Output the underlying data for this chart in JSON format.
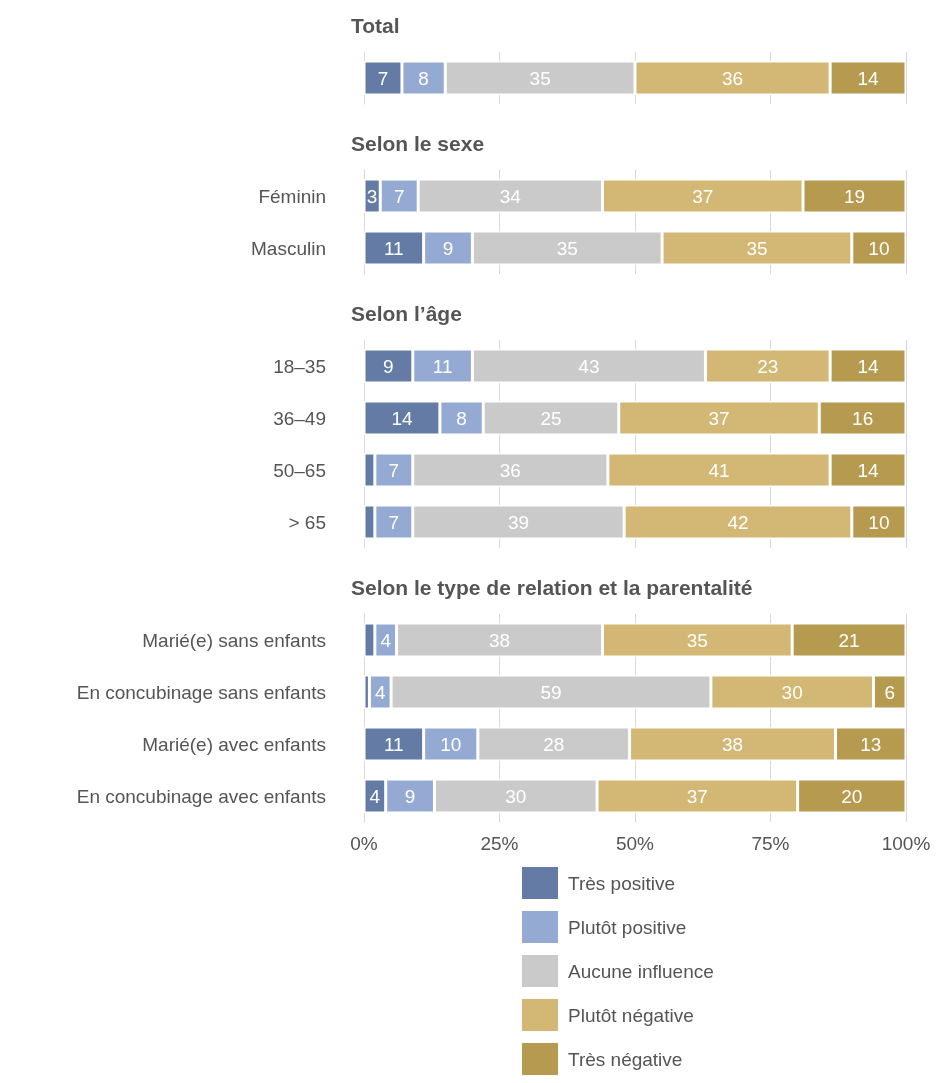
{
  "chart_data": [
    {
      "type": "bar",
      "title": "Total",
      "orientation": "horizontal",
      "stacked": true,
      "categories": [
        null
      ],
      "xlim": [
        0,
        100
      ],
      "xticks": [
        {
          "value": 0,
          "label": null
        },
        {
          "value": 25,
          "label": null
        },
        {
          "value": 50,
          "label": null
        },
        {
          "value": 75,
          "label": null
        },
        {
          "value": 100,
          "label": null
        }
      ],
      "grid": "x",
      "tick_labels": "y",
      "legend": false,
      "series": [
        {
          "color": "#647ca5",
          "values": [
            7
          ],
          "value_labels": [
            "7"
          ]
        },
        {
          "color": "#95aad2",
          "values": [
            8
          ],
          "value_labels": [
            "8"
          ]
        },
        {
          "color": "#cacaca",
          "values": [
            35
          ],
          "value_labels": [
            "35"
          ]
        },
        {
          "color": "#d3b774",
          "values": [
            36
          ],
          "value_labels": [
            "36"
          ]
        },
        {
          "color": "#b59a50",
          "values": [
            14
          ],
          "value_labels": [
            "14"
          ]
        }
      ]
    },
    {
      "type": "bar",
      "title": "Selon le sexe",
      "orientation": "horizontal",
      "stacked": true,
      "categories": [
        "Féminin",
        "Masculin"
      ],
      "xlim": [
        0,
        100
      ],
      "xticks": [
        {
          "value": 0,
          "label": null
        },
        {
          "value": 25,
          "label": null
        },
        {
          "value": 50,
          "label": null
        },
        {
          "value": 75,
          "label": null
        },
        {
          "value": 100,
          "label": null
        }
      ],
      "grid": "x",
      "tick_labels": "y",
      "legend": false,
      "series": [
        {
          "color": "#647ca5",
          "values": [
            3,
            11
          ],
          "value_labels": [
            "3",
            "11"
          ]
        },
        {
          "color": "#95aad2",
          "values": [
            7,
            9
          ],
          "value_labels": [
            "7",
            "9"
          ]
        },
        {
          "color": "#cacaca",
          "values": [
            34,
            35
          ],
          "value_labels": [
            "34",
            "35"
          ]
        },
        {
          "color": "#d3b774",
          "values": [
            37,
            35
          ],
          "value_labels": [
            "37",
            "35"
          ]
        },
        {
          "color": "#b59a50",
          "values": [
            19,
            10
          ],
          "value_labels": [
            "19",
            "10"
          ]
        }
      ]
    },
    {
      "type": "bar",
      "title": "Selon l’âge",
      "orientation": "horizontal",
      "stacked": true,
      "categories": [
        "18–35",
        "36–49",
        "50–65",
        "> 65"
      ],
      "xlim": [
        0,
        100
      ],
      "xticks": [
        {
          "value": 0,
          "label": null
        },
        {
          "value": 25,
          "label": null
        },
        {
          "value": 50,
          "label": null
        },
        {
          "value": 75,
          "label": null
        },
        {
          "value": 100,
          "label": null
        }
      ],
      "grid": "x",
      "tick_labels": "y",
      "legend": false,
      "series": [
        {
          "color": "#647ca5",
          "values": [
            9,
            14,
            2,
            2
          ],
          "value_labels": [
            "9",
            "14",
            null,
            null
          ]
        },
        {
          "color": "#95aad2",
          "values": [
            11,
            8,
            7,
            7
          ],
          "value_labels": [
            "11",
            "8",
            "7",
            "7"
          ]
        },
        {
          "color": "#cacaca",
          "values": [
            43,
            25,
            36,
            39
          ],
          "value_labels": [
            "43",
            "25",
            "36",
            "39"
          ]
        },
        {
          "color": "#d3b774",
          "values": [
            23,
            37,
            41,
            42
          ],
          "value_labels": [
            "23",
            "37",
            "41",
            "42"
          ]
        },
        {
          "color": "#b59a50",
          "values": [
            14,
            16,
            14,
            10
          ],
          "value_labels": [
            "14",
            "16",
            "14",
            "10"
          ]
        }
      ]
    },
    {
      "type": "bar",
      "title": "Selon le type de relation et la parentalité",
      "orientation": "horizontal",
      "stacked": true,
      "categories": [
        "Marié(e) sans enfants",
        "En concubinage sans enfants",
        "Marié(e) avec enfants",
        "En concubinage avec enfants"
      ],
      "xlim": [
        0,
        100
      ],
      "xticks": [
        {
          "value": 0,
          "label": "0%"
        },
        {
          "value": 25,
          "label": "25%"
        },
        {
          "value": 50,
          "label": "50%"
        },
        {
          "value": 75,
          "label": "75%"
        },
        {
          "value": 100,
          "label": "100%"
        }
      ],
      "grid": "x",
      "legend": "bottom",
      "series": [
        {
          "name": "Très positive",
          "color": "#647ca5",
          "values": [
            2,
            1,
            11,
            4
          ],
          "value_labels": [
            null,
            null,
            "11",
            "4"
          ]
        },
        {
          "name": "Plutôt positive",
          "color": "#95aad2",
          "values": [
            4,
            4,
            10,
            9
          ],
          "value_labels": [
            "4",
            "4",
            "10",
            "9"
          ]
        },
        {
          "name": "Aucune influence",
          "color": "#cacaca",
          "values": [
            38,
            59,
            28,
            30
          ],
          "value_labels": [
            "38",
            "59",
            "28",
            "30"
          ]
        },
        {
          "name": "Plutôt négative",
          "color": "#d3b774",
          "values": [
            35,
            30,
            38,
            37
          ],
          "value_labels": [
            "35",
            "30",
            "38",
            "37"
          ]
        },
        {
          "name": "Très négative",
          "color": "#b59a50",
          "values": [
            21,
            6,
            13,
            20
          ],
          "value_labels": [
            "21",
            "6",
            "13",
            "20"
          ]
        }
      ]
    }
  ]
}
